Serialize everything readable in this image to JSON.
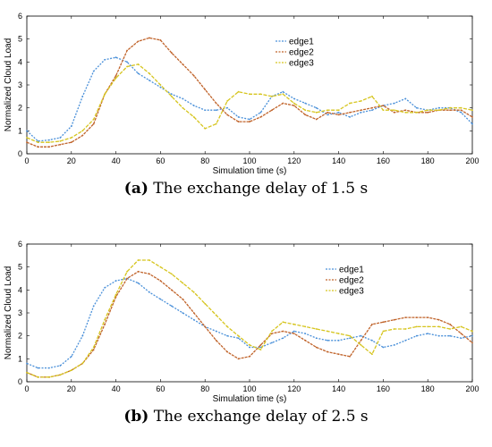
{
  "chart_data": [
    {
      "type": "line",
      "caption_letter": "(a)",
      "caption_text": " The exchange delay of 1.5 s",
      "xlabel": "Simulation time (s)",
      "ylabel": "Normalized Cloud Load",
      "xlim": [
        0,
        200
      ],
      "ylim": [
        0,
        6
      ],
      "xticks": [
        "0",
        "20",
        "40",
        "60",
        "80",
        "100",
        "120",
        "140",
        "160",
        "180",
        "200"
      ],
      "yticks": [
        "0",
        "1",
        "2",
        "3",
        "4",
        "5",
        "6"
      ],
      "legend_position": "top-right",
      "series": [
        {
          "name": "edge1",
          "color": "#4a90d9",
          "x": [
            0,
            5,
            10,
            15,
            20,
            25,
            30,
            35,
            40,
            45,
            50,
            55,
            60,
            65,
            70,
            75,
            80,
            85,
            90,
            95,
            100,
            105,
            110,
            115,
            120,
            125,
            130,
            135,
            140,
            145,
            150,
            155,
            160,
            165,
            170,
            175,
            180,
            185,
            190,
            195,
            200
          ],
          "y": [
            1.0,
            0.55,
            0.6,
            0.7,
            1.2,
            2.5,
            3.6,
            4.1,
            4.2,
            4.0,
            3.5,
            3.2,
            2.9,
            2.6,
            2.4,
            2.1,
            1.9,
            1.9,
            2.0,
            1.6,
            1.5,
            1.8,
            2.5,
            2.7,
            2.4,
            2.2,
            2.0,
            1.7,
            1.8,
            1.6,
            1.8,
            1.9,
            2.1,
            2.2,
            2.4,
            2.0,
            1.9,
            2.0,
            2.0,
            1.8,
            1.3
          ]
        },
        {
          "name": "edge2",
          "color": "#c0632a",
          "x": [
            0,
            5,
            10,
            15,
            20,
            25,
            30,
            35,
            40,
            45,
            50,
            55,
            60,
            65,
            70,
            75,
            80,
            85,
            90,
            95,
            100,
            105,
            110,
            115,
            120,
            125,
            130,
            135,
            140,
            145,
            150,
            155,
            160,
            165,
            170,
            175,
            180,
            185,
            190,
            195,
            200
          ],
          "y": [
            0.5,
            0.3,
            0.3,
            0.4,
            0.5,
            0.8,
            1.3,
            2.6,
            3.4,
            4.5,
            4.9,
            5.05,
            4.95,
            4.4,
            3.9,
            3.4,
            2.8,
            2.2,
            1.7,
            1.4,
            1.4,
            1.6,
            1.9,
            2.2,
            2.1,
            1.7,
            1.5,
            1.8,
            1.7,
            1.8,
            1.9,
            2.0,
            2.1,
            1.8,
            1.9,
            1.8,
            1.8,
            1.9,
            1.9,
            1.9,
            1.6
          ]
        },
        {
          "name": "edge3",
          "color": "#d6c51f",
          "x": [
            0,
            5,
            10,
            15,
            20,
            25,
            30,
            35,
            40,
            45,
            50,
            55,
            60,
            65,
            70,
            75,
            80,
            85,
            90,
            95,
            100,
            105,
            110,
            115,
            120,
            125,
            130,
            135,
            140,
            145,
            150,
            155,
            160,
            165,
            170,
            175,
            180,
            185,
            190,
            195,
            200
          ],
          "y": [
            0.7,
            0.5,
            0.5,
            0.55,
            0.7,
            1.0,
            1.5,
            2.6,
            3.3,
            3.8,
            3.9,
            3.5,
            3.0,
            2.5,
            2.0,
            1.6,
            1.1,
            1.3,
            2.3,
            2.7,
            2.6,
            2.6,
            2.5,
            2.6,
            2.2,
            1.9,
            1.8,
            1.9,
            1.9,
            2.2,
            2.3,
            2.5,
            1.9,
            1.9,
            1.8,
            1.8,
            1.9,
            1.9,
            2.0,
            2.0,
            1.9
          ]
        }
      ]
    },
    {
      "type": "line",
      "caption_letter": "(b)",
      "caption_text": " The exchange delay of 2.5 s",
      "xlabel": "Simulation time (s)",
      "ylabel": "Normalized Cloud Load",
      "xlim": [
        0,
        200
      ],
      "ylim": [
        0,
        6
      ],
      "xticks": [
        "0",
        "20",
        "40",
        "60",
        "80",
        "100",
        "120",
        "140",
        "160",
        "180",
        "200"
      ],
      "yticks": [
        "0",
        "1",
        "2",
        "3",
        "4",
        "5",
        "6"
      ],
      "legend_position": "top-right",
      "series": [
        {
          "name": "edge1",
          "color": "#4a90d9",
          "x": [
            0,
            5,
            10,
            15,
            20,
            25,
            30,
            35,
            40,
            45,
            50,
            55,
            60,
            65,
            70,
            75,
            80,
            85,
            90,
            95,
            100,
            105,
            110,
            115,
            120,
            125,
            130,
            135,
            140,
            145,
            150,
            155,
            160,
            165,
            170,
            175,
            180,
            185,
            190,
            195,
            200
          ],
          "y": [
            0.8,
            0.6,
            0.6,
            0.7,
            1.1,
            2.0,
            3.3,
            4.1,
            4.4,
            4.5,
            4.3,
            3.9,
            3.6,
            3.3,
            3.0,
            2.7,
            2.4,
            2.2,
            2.0,
            1.9,
            1.5,
            1.5,
            1.7,
            1.9,
            2.2,
            2.1,
            1.9,
            1.8,
            1.8,
            1.9,
            2.0,
            1.8,
            1.5,
            1.6,
            1.8,
            2.0,
            2.1,
            2.0,
            2.0,
            1.9,
            2.0
          ]
        },
        {
          "name": "edge2",
          "color": "#c0632a",
          "x": [
            0,
            5,
            10,
            15,
            20,
            25,
            30,
            35,
            40,
            45,
            50,
            55,
            60,
            65,
            70,
            75,
            80,
            85,
            90,
            95,
            100,
            105,
            110,
            115,
            120,
            125,
            130,
            135,
            140,
            145,
            150,
            155,
            160,
            165,
            170,
            175,
            180,
            185,
            190,
            195,
            200
          ],
          "y": [
            0.4,
            0.2,
            0.2,
            0.3,
            0.5,
            0.8,
            1.4,
            2.5,
            3.7,
            4.5,
            4.8,
            4.7,
            4.4,
            4.0,
            3.6,
            3.0,
            2.4,
            1.8,
            1.3,
            1.0,
            1.1,
            1.6,
            2.1,
            2.2,
            2.1,
            1.8,
            1.5,
            1.3,
            1.2,
            1.1,
            1.8,
            2.5,
            2.6,
            2.7,
            2.8,
            2.8,
            2.8,
            2.7,
            2.5,
            2.1,
            1.7
          ]
        },
        {
          "name": "edge3",
          "color": "#d6c51f",
          "x": [
            0,
            5,
            10,
            15,
            20,
            25,
            30,
            35,
            40,
            45,
            50,
            55,
            60,
            65,
            70,
            75,
            80,
            85,
            90,
            95,
            100,
            105,
            110,
            115,
            120,
            125,
            130,
            135,
            140,
            145,
            150,
            155,
            160,
            165,
            170,
            175,
            180,
            185,
            190,
            195,
            200
          ],
          "y": [
            0.4,
            0.2,
            0.2,
            0.3,
            0.5,
            0.8,
            1.5,
            2.7,
            3.8,
            4.8,
            5.3,
            5.3,
            5.0,
            4.7,
            4.3,
            3.9,
            3.4,
            2.9,
            2.4,
            2.0,
            1.6,
            1.4,
            2.2,
            2.6,
            2.5,
            2.4,
            2.3,
            2.2,
            2.1,
            2.0,
            1.6,
            1.2,
            2.2,
            2.3,
            2.3,
            2.4,
            2.4,
            2.4,
            2.3,
            2.4,
            2.2
          ]
        }
      ]
    }
  ]
}
